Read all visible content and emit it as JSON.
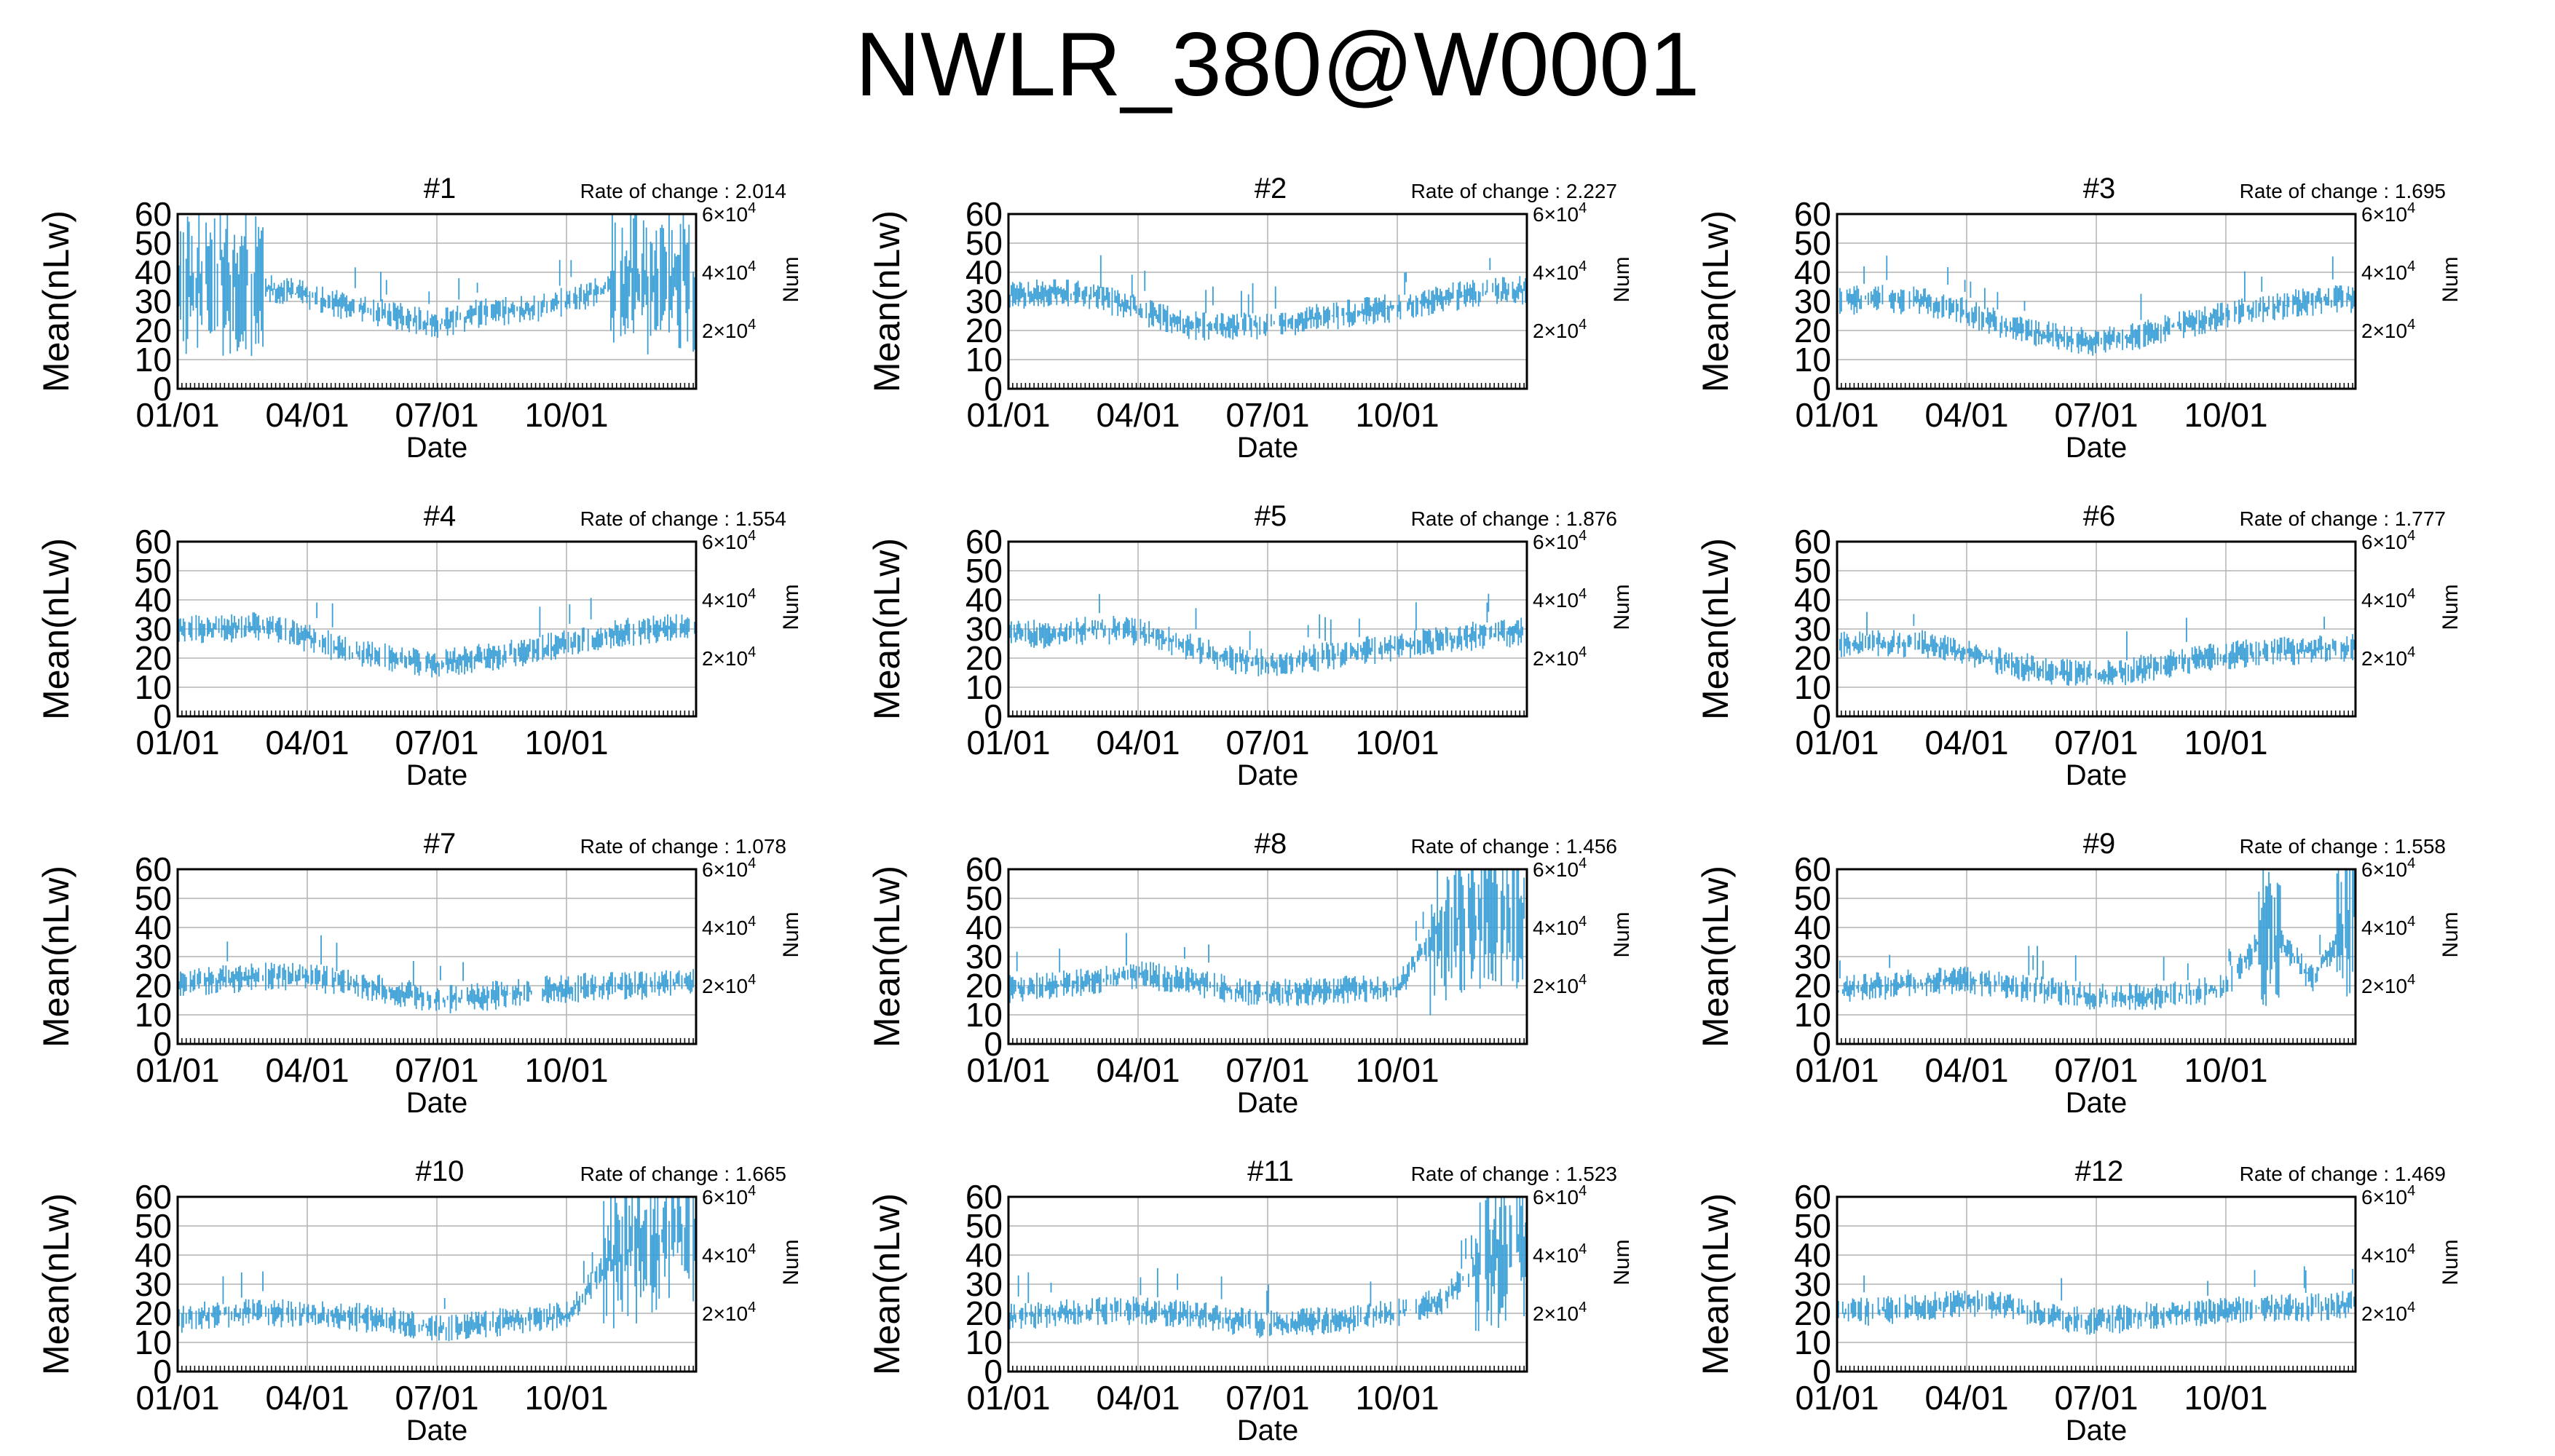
{
  "title": "NWLR_380@W0001",
  "ylabel": "Mean(nLw)",
  "y2label": "Num",
  "xlabel": "Date",
  "rate_prefix": "Rate of change : ",
  "y_ticks": [
    "0",
    "10",
    "20",
    "30",
    "40",
    "50",
    "60"
  ],
  "y2_ticks": [
    {
      "mantissa": "2",
      "exp": "4",
      "value": 20000
    },
    {
      "mantissa": "4",
      "exp": "4",
      "value": 40000
    },
    {
      "mantissa": "6",
      "exp": "4",
      "value": 60000
    }
  ],
  "x_ticks": [
    "01/01",
    "04/01",
    "07/01",
    "10/01"
  ],
  "colors": {
    "series": "#3a9fd6",
    "grid": "#b4b4b4",
    "axis": "#000000"
  },
  "chart_data": [
    {
      "type": "line",
      "panel": "#1",
      "rate": "2.014",
      "xlabel": "Date",
      "ylabel": "Mean(nLw)",
      "y2label": "Num",
      "ylim": [
        0,
        60
      ],
      "y2lim": [
        0,
        60000
      ],
      "grid": true,
      "series": [
        {
          "x": [
            "01/01",
            "02/01",
            "03/01",
            "04/01",
            "05/01",
            "06/01",
            "07/01",
            "08/01",
            "09/01",
            "10/01",
            "11/01",
            "12/01",
            "12/31"
          ],
          "y": [
            36,
            37,
            35,
            32,
            28,
            25,
            22,
            26,
            27,
            30,
            35,
            38,
            37
          ]
        }
      ]
    },
    {
      "type": "line",
      "panel": "#2",
      "rate": "2.227",
      "xlabel": "Date",
      "ylabel": "Mean(nLw)",
      "y2label": "Num",
      "ylim": [
        0,
        60
      ],
      "y2lim": [
        0,
        60000
      ],
      "grid": true,
      "series": [
        {
          "x": [
            "01/01",
            "02/01",
            "03/01",
            "04/01",
            "05/01",
            "06/01",
            "07/01",
            "08/01",
            "09/01",
            "10/01",
            "11/01",
            "12/01",
            "12/31"
          ],
          "y": [
            32,
            33,
            32,
            27,
            22,
            21,
            22,
            24,
            26,
            28,
            31,
            33,
            34
          ]
        }
      ]
    },
    {
      "type": "line",
      "panel": "#3",
      "rate": "1.695",
      "xlabel": "Date",
      "ylabel": "Mean(nLw)",
      "y2label": "Num",
      "ylim": [
        0,
        60
      ],
      "y2lim": [
        0,
        60000
      ],
      "grid": true,
      "series": [
        {
          "x": [
            "01/01",
            "02/01",
            "03/01",
            "04/01",
            "05/01",
            "06/01",
            "07/01",
            "08/01",
            "09/01",
            "10/01",
            "11/01",
            "12/01",
            "12/31"
          ],
          "y": [
            30,
            31,
            30,
            26,
            21,
            18,
            16,
            18,
            22,
            25,
            28,
            30,
            31
          ]
        }
      ]
    },
    {
      "type": "line",
      "panel": "#4",
      "rate": "1.554",
      "xlabel": "Date",
      "ylabel": "Mean(nLw)",
      "y2label": "Num",
      "ylim": [
        0,
        60
      ],
      "y2lim": [
        0,
        60000
      ],
      "grid": true,
      "series": [
        {
          "x": [
            "01/01",
            "02/01",
            "03/01",
            "04/01",
            "05/01",
            "06/01",
            "07/01",
            "08/01",
            "09/01",
            "10/01",
            "11/01",
            "12/01",
            "12/31"
          ],
          "y": [
            30,
            30,
            31,
            27,
            22,
            20,
            18,
            20,
            22,
            25,
            28,
            30,
            31
          ]
        }
      ]
    },
    {
      "type": "line",
      "panel": "#5",
      "rate": "1.876",
      "xlabel": "Date",
      "ylabel": "Mean(nLw)",
      "y2label": "Num",
      "ylim": [
        0,
        60
      ],
      "y2lim": [
        0,
        60000
      ],
      "grid": true,
      "series": [
        {
          "x": [
            "01/01",
            "02/01",
            "03/01",
            "04/01",
            "05/01",
            "06/01",
            "07/01",
            "08/01",
            "09/01",
            "10/01",
            "11/01",
            "12/01",
            "12/31"
          ],
          "y": [
            29,
            28,
            30,
            29,
            25,
            20,
            18,
            20,
            22,
            24,
            26,
            28,
            29
          ]
        }
      ]
    },
    {
      "type": "line",
      "panel": "#6",
      "rate": "1.777",
      "xlabel": "Date",
      "ylabel": "Mean(nLw)",
      "y2label": "Num",
      "ylim": [
        0,
        60
      ],
      "y2lim": [
        0,
        60000
      ],
      "grid": true,
      "series": [
        {
          "x": [
            "01/01",
            "02/01",
            "03/01",
            "04/01",
            "05/01",
            "06/01",
            "07/01",
            "08/01",
            "09/01",
            "10/01",
            "11/01",
            "12/01",
            "12/31"
          ],
          "y": [
            24,
            25,
            25,
            22,
            18,
            15,
            14,
            16,
            19,
            21,
            22,
            23,
            24
          ]
        }
      ]
    },
    {
      "type": "line",
      "panel": "#7",
      "rate": "1.078",
      "xlabel": "Date",
      "ylabel": "Mean(nLw)",
      "y2label": "Num",
      "ylim": [
        0,
        60
      ],
      "y2lim": [
        0,
        60000
      ],
      "grid": true,
      "series": [
        {
          "x": [
            "01/01",
            "02/01",
            "03/01",
            "04/01",
            "05/01",
            "06/01",
            "07/01",
            "08/01",
            "09/01",
            "10/01",
            "11/01",
            "12/01",
            "12/31"
          ],
          "y": [
            21,
            22,
            23,
            23,
            21,
            18,
            15,
            16,
            18,
            19,
            20,
            20,
            22
          ]
        }
      ]
    },
    {
      "type": "line",
      "panel": "#8",
      "rate": "1.456",
      "xlabel": "Date",
      "ylabel": "Mean(nLw)",
      "y2label": "Num",
      "ylim": [
        0,
        60
      ],
      "y2lim": [
        0,
        60000
      ],
      "grid": true,
      "series": [
        {
          "x": [
            "01/01",
            "02/01",
            "03/01",
            "04/01",
            "05/01",
            "06/01",
            "07/01",
            "08/01",
            "09/01",
            "10/01",
            "11/01",
            "12/01",
            "12/31"
          ],
          "y": [
            19,
            20,
            22,
            24,
            22,
            19,
            17,
            18,
            19,
            19,
            40,
            45,
            45
          ]
        }
      ]
    },
    {
      "type": "line",
      "panel": "#9",
      "rate": "1.558",
      "xlabel": "Date",
      "ylabel": "Mean(nLw)",
      "y2label": "Num",
      "ylim": [
        0,
        60
      ],
      "y2lim": [
        0,
        60000
      ],
      "grid": true,
      "series": [
        {
          "x": [
            "01/01",
            "02/01",
            "03/01",
            "04/01",
            "05/01",
            "06/01",
            "07/01",
            "08/01",
            "09/01",
            "10/01",
            "11/01",
            "12/01",
            "12/31"
          ],
          "y": [
            18,
            20,
            21,
            22,
            20,
            18,
            16,
            16,
            17,
            19,
            40,
            22,
            45
          ]
        }
      ]
    },
    {
      "type": "line",
      "panel": "#10",
      "rate": "1.665",
      "xlabel": "Date",
      "ylabel": "Mean(nLw)",
      "y2label": "Num",
      "ylim": [
        0,
        60
      ],
      "y2lim": [
        0,
        60000
      ],
      "grid": true,
      "series": [
        {
          "x": [
            "01/01",
            "02/01",
            "03/01",
            "04/01",
            "05/01",
            "06/01",
            "07/01",
            "08/01",
            "09/01",
            "10/01",
            "11/01",
            "12/01",
            "12/31"
          ],
          "y": [
            18,
            20,
            20,
            20,
            19,
            17,
            15,
            16,
            18,
            19,
            38,
            45,
            45
          ]
        }
      ]
    },
    {
      "type": "line",
      "panel": "#11",
      "rate": "1.523",
      "xlabel": "Date",
      "ylabel": "Mean(nLw)",
      "y2label": "Num",
      "ylim": [
        0,
        60
      ],
      "y2lim": [
        0,
        60000
      ],
      "grid": true,
      "series": [
        {
          "x": [
            "01/01",
            "02/01",
            "03/01",
            "04/01",
            "05/01",
            "06/01",
            "07/01",
            "08/01",
            "09/01",
            "10/01",
            "11/01",
            "12/01",
            "12/31"
          ],
          "y": [
            19,
            20,
            21,
            21,
            20,
            18,
            16,
            17,
            18,
            20,
            24,
            38,
            45
          ]
        }
      ]
    },
    {
      "type": "line",
      "panel": "#12",
      "rate": "1.469",
      "xlabel": "Date",
      "ylabel": "Mean(nLw)",
      "y2label": "Num",
      "ylim": [
        0,
        60
      ],
      "y2lim": [
        0,
        60000
      ],
      "grid": true,
      "series": [
        {
          "x": [
            "01/01",
            "02/01",
            "03/01",
            "04/01",
            "05/01",
            "06/01",
            "07/01",
            "08/01",
            "09/01",
            "10/01",
            "11/01",
            "12/01",
            "12/31"
          ],
          "y": [
            20,
            21,
            22,
            24,
            22,
            19,
            17,
            19,
            20,
            21,
            22,
            22,
            23
          ]
        }
      ]
    }
  ]
}
